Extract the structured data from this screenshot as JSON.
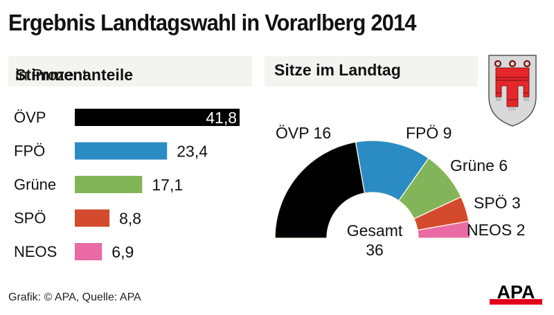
{
  "header": {
    "title": "Ergebnis Landtagswahl in Vorarlberg 2014"
  },
  "left_panel": {
    "heading_bold": "Stimmenanteile",
    "heading_normal": " in Prozent"
  },
  "right_panel": {
    "heading": "Sitze im Landtag"
  },
  "crest": {
    "icon": "vorarlberg-coat-of-arms-icon"
  },
  "footer": {
    "credit": "Grafik: © APA, Quelle: APA",
    "logo_text": "APA"
  },
  "colors": {
    "ÖVP": "#000000",
    "FPÖ": "#2b8cc4",
    "Grüne": "#82b55a",
    "SPÖ": "#d44a2c",
    "NEOS": "#e96aa4",
    "panel_bg": "#f3f3ef",
    "apa_red": "#e2001a"
  },
  "chart_data": [
    {
      "type": "bar",
      "orientation": "horizontal",
      "title": "Stimmenanteile in Prozent",
      "categories": [
        "ÖVP",
        "FPÖ",
        "Grüne",
        "SPÖ",
        "NEOS"
      ],
      "values": [
        41.8,
        23.4,
        17.1,
        8.8,
        6.9
      ],
      "value_labels": [
        "41,8",
        "23,4",
        "17,1",
        "8,8",
        "6,9"
      ],
      "colors": [
        "#000000",
        "#2b8cc4",
        "#82b55a",
        "#d44a2c",
        "#e96aa4"
      ],
      "xlabel": "",
      "ylabel": "",
      "xlim": [
        0,
        41.8
      ],
      "grid": false,
      "legend": "none"
    },
    {
      "type": "pie",
      "variant": "half-donut",
      "title": "Sitze im Landtag",
      "categories": [
        "ÖVP",
        "FPÖ",
        "Grüne",
        "SPÖ",
        "NEOS"
      ],
      "values": [
        16,
        9,
        6,
        3,
        2
      ],
      "labels": [
        "ÖVP 16",
        "FPÖ 9",
        "Grüne 6",
        "SPÖ 3",
        "NEOS 2"
      ],
      "colors": [
        "#000000",
        "#2b8cc4",
        "#82b55a",
        "#d44a2c",
        "#e96aa4"
      ],
      "center_label": "Gesamt",
      "center_value": "36",
      "legend": "none"
    }
  ]
}
